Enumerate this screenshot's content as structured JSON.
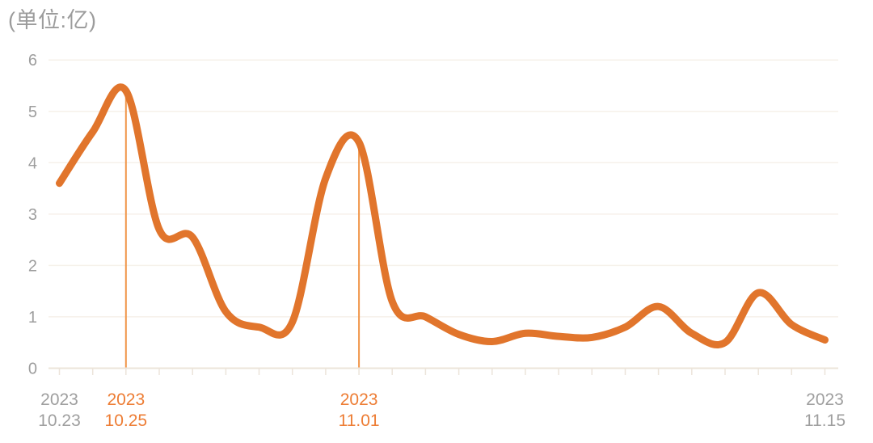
{
  "colors": {
    "background": "#ffffff",
    "line": "#e1752c",
    "marker_line": "#f0964a",
    "grid_line": "#f6f1ea",
    "axis_line": "#ece4da",
    "tick_mark": "#ece4da",
    "axis_label": "#9e9e9e",
    "highlight_label": "#ed7c33",
    "title": "#9c9c9c"
  },
  "chart_data": {
    "type": "line",
    "title": "(单位:亿)",
    "smooth": true,
    "grid": true,
    "legend": false,
    "ylim": [
      0,
      6
    ],
    "yticks": [
      0,
      1,
      2,
      3,
      4,
      5,
      6
    ],
    "categories": [
      "2023.10.23",
      "2023.10.24",
      "2023.10.25",
      "2023.10.26",
      "2023.10.27",
      "2023.10.28",
      "2023.10.29",
      "2023.10.30",
      "2023.10.31",
      "2023.11.01",
      "2023.11.02",
      "2023.11.03",
      "2023.11.04",
      "2023.11.05",
      "2023.11.06",
      "2023.11.07",
      "2023.11.08",
      "2023.11.09",
      "2023.11.10",
      "2023.11.11",
      "2023.11.12",
      "2023.11.13",
      "2023.11.14",
      "2023.11.15"
    ],
    "values": [
      3.6,
      4.6,
      5.4,
      2.7,
      2.55,
      1.1,
      0.8,
      0.9,
      3.7,
      4.4,
      1.3,
      1.0,
      0.66,
      0.52,
      0.68,
      0.62,
      0.6,
      0.8,
      1.2,
      0.68,
      0.5,
      1.47,
      0.85,
      0.55
    ],
    "xtick_labels": [
      {
        "index": 0,
        "line1": "2023",
        "line2": "10.23",
        "highlighted": false
      },
      {
        "index": 2,
        "line1": "2023",
        "line2": "10.25",
        "highlighted": true
      },
      {
        "index": 9,
        "line1": "2023",
        "line2": "11.01",
        "highlighted": true
      },
      {
        "index": 23,
        "line1": "2023",
        "line2": "11.15",
        "highlighted": false
      }
    ],
    "marked_peaks": [
      {
        "category": "2023.10.25",
        "index": 2,
        "value": 5.4
      },
      {
        "category": "2023.11.01",
        "index": 9,
        "value": 4.4
      }
    ]
  }
}
